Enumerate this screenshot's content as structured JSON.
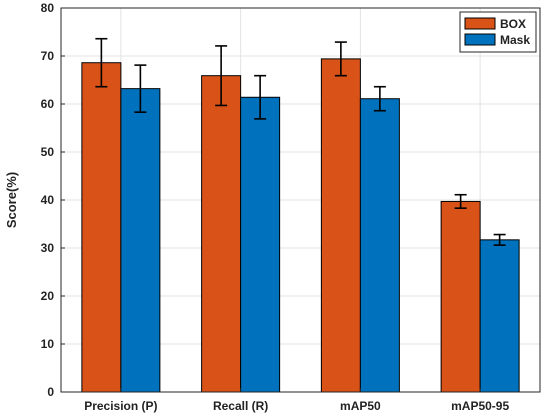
{
  "chart_data": {
    "type": "bar",
    "title": "",
    "xlabel": "",
    "ylabel": "Score(%)",
    "ylim": [
      0,
      80
    ],
    "yticks": [
      0,
      10,
      20,
      30,
      40,
      50,
      60,
      70,
      80
    ],
    "grid": true,
    "legend_position": "top-right",
    "categories": [
      "Precision (P)",
      "Recall (R)",
      "mAP50",
      "mAP50-95"
    ],
    "series": [
      {
        "name": "BOX",
        "color": "#D95319",
        "values": [
          68.6,
          65.9,
          69.4,
          39.7
        ],
        "errors": [
          5.0,
          6.2,
          3.5,
          1.4
        ]
      },
      {
        "name": "Mask",
        "color": "#0072BD",
        "values": [
          63.2,
          61.4,
          61.1,
          31.7
        ],
        "errors": [
          4.9,
          4.5,
          2.5,
          1.1
        ]
      }
    ]
  }
}
